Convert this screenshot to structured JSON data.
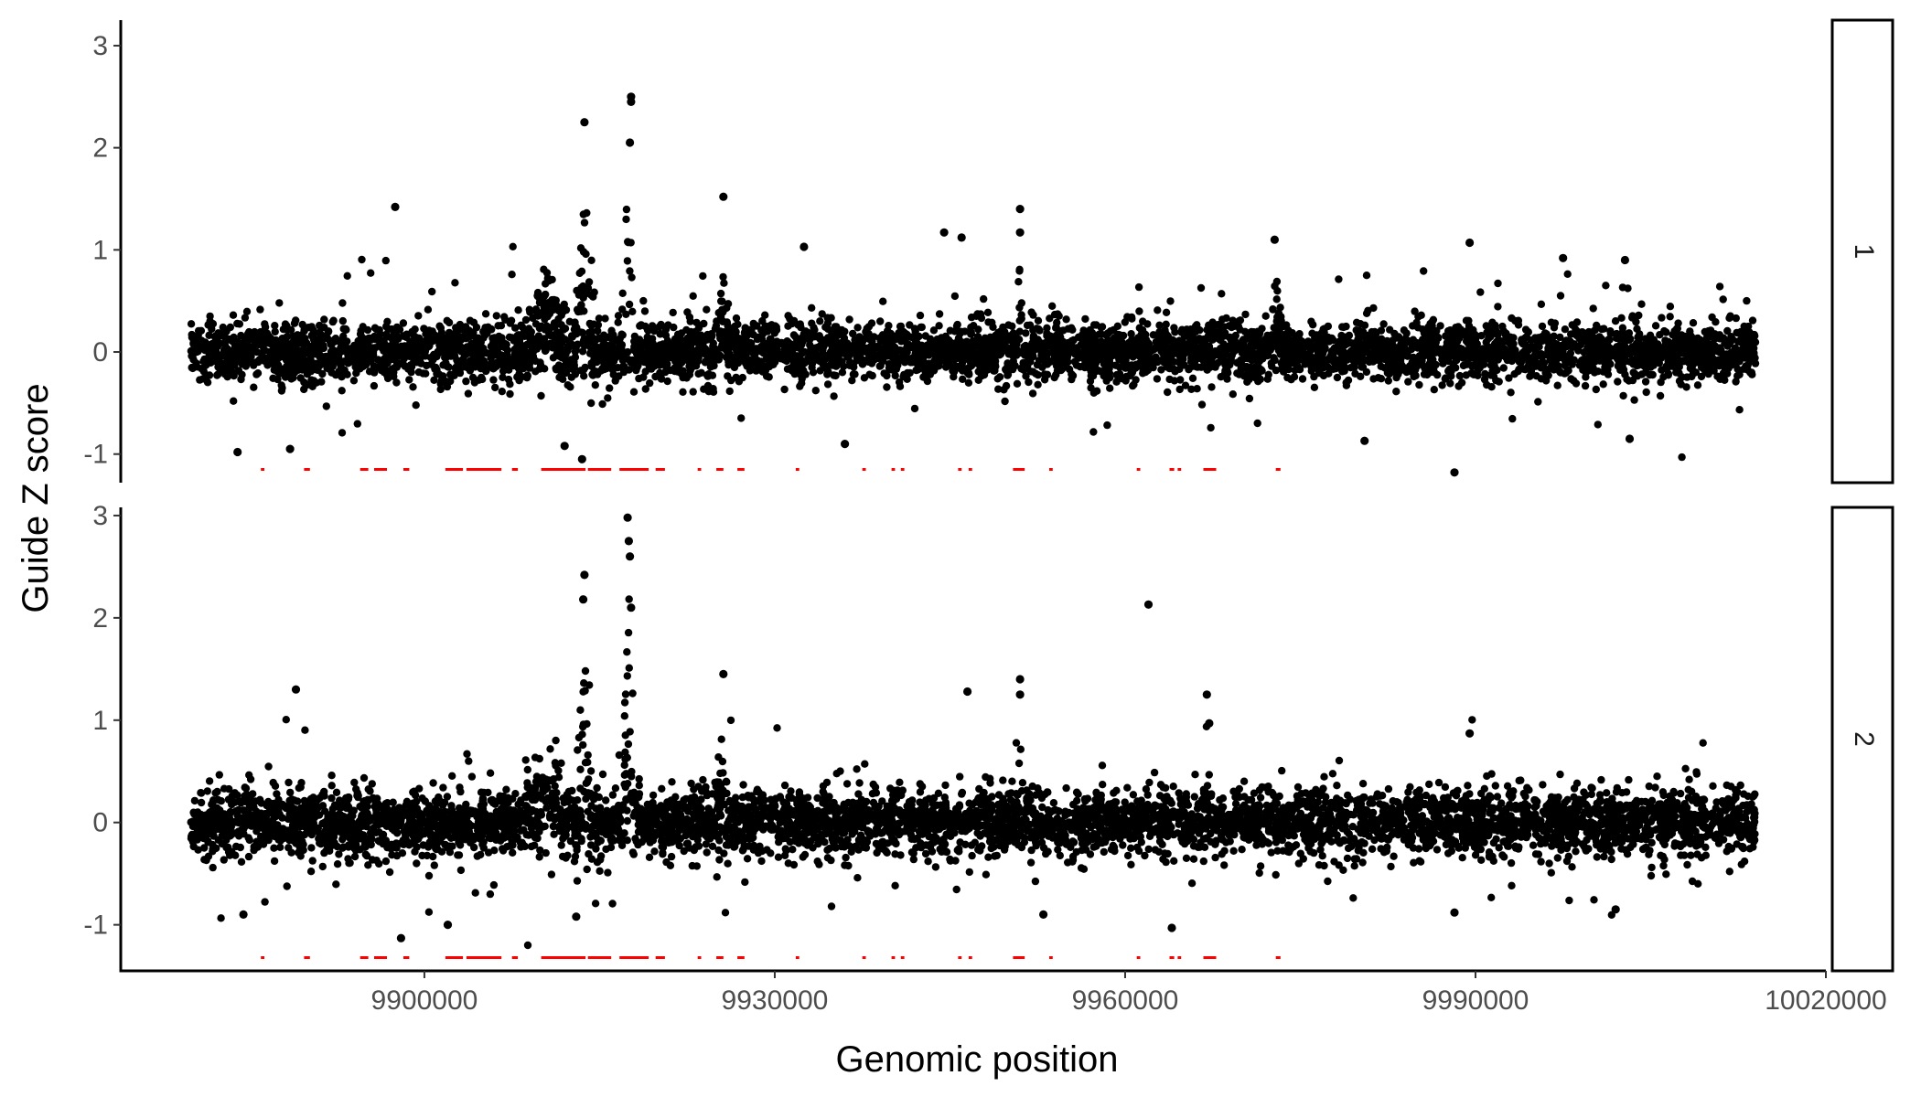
{
  "chart_data": {
    "type": "scatter",
    "xlabel": "Genomic position",
    "ylabel": "Guide Z score",
    "xlim": [
      9874000,
      10020000
    ],
    "x_ticks": [
      9900000,
      9930000,
      9960000,
      9990000,
      10020000
    ],
    "y_ticks": [
      -1,
      0,
      1,
      2,
      3
    ],
    "grid": false,
    "legend": "none",
    "colors": {
      "points": "#000000",
      "annotation_segments": "#ff0000",
      "axis": "#000000",
      "tick_text": "#4d4d4d"
    },
    "x_range_of_guides": [
      9880000,
      10014000
    ],
    "panels": [
      {
        "strip_label": "1",
        "ylim": [
          -1.28,
          3.25
        ],
        "y_ticks": [
          -1,
          0,
          1,
          2,
          3
        ],
        "baseline_spread": 0.14,
        "peaks": [
          {
            "x": 9910500,
            "width": 1800,
            "height": 0.55
          },
          {
            "x": 9913800,
            "width": 700,
            "height": 1.25
          },
          {
            "x": 9917500,
            "width": 500,
            "height": 1.35
          },
          {
            "x": 9925500,
            "width": 600,
            "height": 0.45
          },
          {
            "x": 9951000,
            "width": 250,
            "height": 0.75
          },
          {
            "x": 9973000,
            "width": 500,
            "height": 0.45
          }
        ],
        "highlighted_points": [
          {
            "x": 9897500,
            "y": 1.42
          },
          {
            "x": 9913700,
            "y": 2.25
          },
          {
            "x": 9917700,
            "y": 2.5
          },
          {
            "x": 9917700,
            "y": 2.45
          },
          {
            "x": 9917600,
            "y": 2.05
          },
          {
            "x": 9925600,
            "y": 1.52
          },
          {
            "x": 9932500,
            "y": 1.03
          },
          {
            "x": 9944500,
            "y": 1.17
          },
          {
            "x": 9946000,
            "y": 1.12
          },
          {
            "x": 9951000,
            "y": 1.4
          },
          {
            "x": 9951000,
            "y": 1.17
          },
          {
            "x": 9972800,
            "y": 1.1
          },
          {
            "x": 9989500,
            "y": 1.07
          },
          {
            "x": 9997500,
            "y": 0.92
          },
          {
            "x": 10002800,
            "y": 0.9
          },
          {
            "x": 9884000,
            "y": -0.98
          },
          {
            "x": 9888500,
            "y": -0.95
          },
          {
            "x": 9912000,
            "y": -0.92
          },
          {
            "x": 9913500,
            "y": -1.05
          },
          {
            "x": 9936000,
            "y": -0.9
          },
          {
            "x": 9988200,
            "y": -1.18
          },
          {
            "x": 9980500,
            "y": -0.87
          },
          {
            "x": 10003200,
            "y": -0.85
          }
        ]
      },
      {
        "strip_label": "2",
        "ylim": [
          -1.45,
          3.08
        ],
        "y_ticks": [
          -1,
          0,
          1,
          2,
          3
        ],
        "baseline_spread": 0.16,
        "peaks": [
          {
            "x": 9910500,
            "width": 1800,
            "height": 0.45
          },
          {
            "x": 9913800,
            "width": 700,
            "height": 1.35
          },
          {
            "x": 9917500,
            "width": 500,
            "height": 1.6
          },
          {
            "x": 9925500,
            "width": 500,
            "height": 0.55
          },
          {
            "x": 9951000,
            "width": 250,
            "height": 0.75
          },
          {
            "x": 9967000,
            "width": 300,
            "height": 0.4
          }
        ],
        "highlighted_points": [
          {
            "x": 9889000,
            "y": 1.3
          },
          {
            "x": 9913700,
            "y": 2.42
          },
          {
            "x": 9913600,
            "y": 2.18
          },
          {
            "x": 9917400,
            "y": 2.98
          },
          {
            "x": 9917500,
            "y": 2.75
          },
          {
            "x": 9917600,
            "y": 2.6
          },
          {
            "x": 9917700,
            "y": 2.1
          },
          {
            "x": 9925600,
            "y": 1.45
          },
          {
            "x": 9946500,
            "y": 1.28
          },
          {
            "x": 9951000,
            "y": 1.4
          },
          {
            "x": 9951000,
            "y": 1.25
          },
          {
            "x": 9962000,
            "y": 2.13
          },
          {
            "x": 9967000,
            "y": 1.25
          },
          {
            "x": 9967200,
            "y": 0.97
          },
          {
            "x": 9989500,
            "y": 0.87
          },
          {
            "x": 9884500,
            "y": -0.9
          },
          {
            "x": 9898000,
            "y": -1.13
          },
          {
            "x": 9902000,
            "y": -1.0
          },
          {
            "x": 9913000,
            "y": -0.92
          },
          {
            "x": 9953000,
            "y": -0.9
          },
          {
            "x": 9964000,
            "y": -1.03
          },
          {
            "x": 9988200,
            "y": -0.88
          },
          {
            "x": 10002000,
            "y": -0.85
          }
        ]
      }
    ],
    "annotation_segments": [
      [
        9886000,
        9886300
      ],
      [
        9889700,
        9890200
      ],
      [
        9894500,
        9895200
      ],
      [
        9895700,
        9896800
      ],
      [
        9898200,
        9898700
      ],
      [
        9901800,
        9903300
      ],
      [
        9903600,
        9906600
      ],
      [
        9907500,
        9908000
      ],
      [
        9910000,
        9913800
      ],
      [
        9914000,
        9916000
      ],
      [
        9916700,
        9919200
      ],
      [
        9919800,
        9920600
      ],
      [
        9923400,
        9923700
      ],
      [
        9925000,
        9925600
      ],
      [
        9926800,
        9927400
      ],
      [
        9931800,
        9932100
      ],
      [
        9937500,
        9937800
      ],
      [
        9940000,
        9940300
      ],
      [
        9940800,
        9941100
      ],
      [
        9945700,
        9946000
      ],
      [
        9946600,
        9946900
      ],
      [
        9950400,
        9951400
      ],
      [
        9953500,
        9953800
      ],
      [
        9961000,
        9961300
      ],
      [
        9963800,
        9964200
      ],
      [
        9964500,
        9964800
      ],
      [
        9966700,
        9967800
      ],
      [
        9972900,
        9973300
      ]
    ]
  }
}
